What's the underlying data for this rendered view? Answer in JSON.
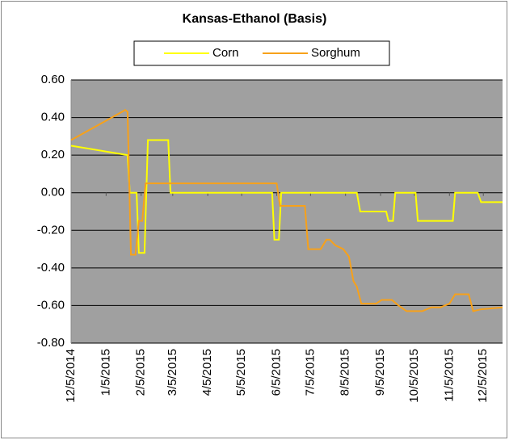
{
  "chart_data": {
    "type": "line",
    "title": "Kansas-Ethanol (Basis)",
    "xlim": [
      "12/5/2014",
      "12/22/2015"
    ],
    "xticks": [
      "12/5/2014",
      "1/5/2015",
      "2/5/2015",
      "3/5/2015",
      "4/5/2015",
      "5/5/2015",
      "6/5/2015",
      "7/5/2015",
      "8/5/2015",
      "9/5/2015",
      "10/5/2015",
      "11/5/2015",
      "12/5/2015"
    ],
    "ylim": [
      -0.8,
      0.6
    ],
    "yticks": [
      {
        "value": 0.6,
        "label": "0.60"
      },
      {
        "value": 0.4,
        "label": "0.40"
      },
      {
        "value": 0.2,
        "label": "0.20"
      },
      {
        "value": 0,
        "label": "0.00"
      },
      {
        "value": -0.2,
        "label": "-0.20"
      },
      {
        "value": -0.4,
        "label": "-0.40"
      },
      {
        "value": -0.6,
        "label": "-0.60"
      },
      {
        "value": -0.8,
        "label": "-0.80"
      }
    ],
    "grid": true,
    "legend": "top",
    "series": [
      {
        "name": "Corn",
        "color": "#ffff00",
        "x": [
          "12/5/2014",
          "1/24/2015",
          "1/26/2015",
          "2/1/2015",
          "2/3/2015",
          "2/8/2015",
          "2/11/2015",
          "3/1/2015",
          "3/3/2015",
          "6/1/2015",
          "6/3/2015",
          "6/7/2015",
          "6/9/2015",
          "8/15/2015",
          "8/18/2015",
          "9/10/2015",
          "9/12/2015",
          "9/16/2015",
          "9/18/2015",
          "10/6/2015",
          "10/8/2015",
          "11/8/2015",
          "11/10/2015",
          "11/30/2015",
          "12/3/2015",
          "12/22/2015"
        ],
        "values": [
          0.25,
          0.2,
          0,
          0,
          -0.32,
          -0.32,
          0.28,
          0.28,
          0,
          0,
          -0.25,
          -0.25,
          0,
          0,
          -0.1,
          -0.1,
          -0.15,
          -0.15,
          0,
          0,
          -0.15,
          -0.15,
          0,
          0,
          -0.05,
          -0.05
        ]
      },
      {
        "name": "Sorghum",
        "color": "#f7a11a",
        "x": [
          "12/5/2014",
          "1/22/2015",
          "1/24/2015",
          "1/27/2015",
          "1/31/2015",
          "2/3/2015",
          "2/6/2015",
          "2/9/2015",
          "6/5/2015",
          "6/8/2015",
          "6/30/2015",
          "7/3/2015",
          "7/14/2015",
          "7/19/2015",
          "7/22/2015",
          "7/27/2015",
          "8/3/2015",
          "8/8/2015",
          "8/12/2015",
          "8/15/2015",
          "8/19/2015",
          "9/1/2015",
          "9/6/2015",
          "9/15/2015",
          "9/21/2015",
          "9/28/2015",
          "10/12/2015",
          "10/20/2015",
          "10/28/2015",
          "11/5/2015",
          "11/10/2015",
          "11/22/2015",
          "11/26/2015",
          "12/3/2015",
          "12/22/2015"
        ],
        "values": [
          0.28,
          0.44,
          0.43,
          -0.33,
          -0.33,
          -0.15,
          -0.15,
          0.05,
          0.05,
          -0.07,
          -0.07,
          -0.3,
          -0.3,
          -0.25,
          -0.25,
          -0.28,
          -0.3,
          -0.34,
          -0.47,
          -0.5,
          -0.59,
          -0.59,
          -0.57,
          -0.57,
          -0.6,
          -0.63,
          -0.63,
          -0.61,
          -0.61,
          -0.59,
          -0.54,
          -0.54,
          -0.63,
          -0.62,
          -0.61
        ]
      }
    ]
  }
}
